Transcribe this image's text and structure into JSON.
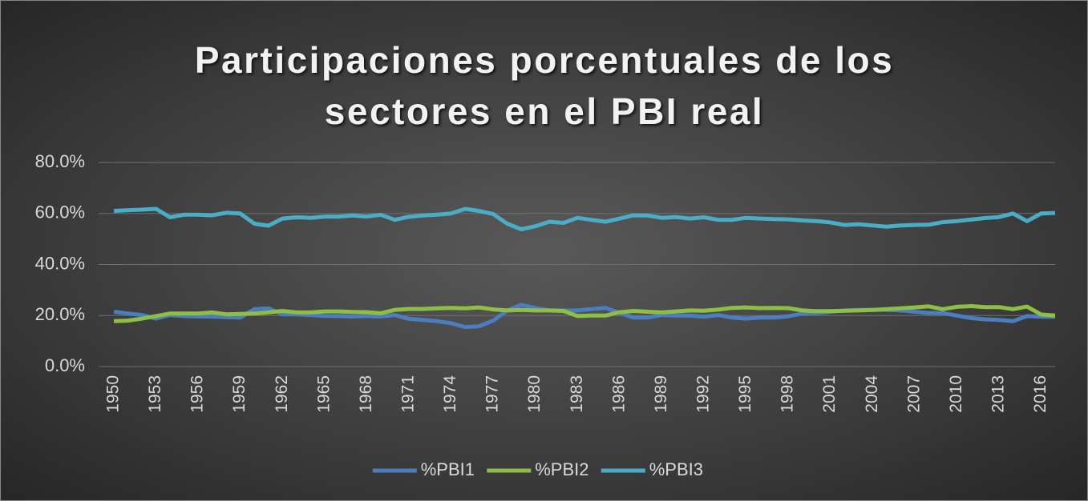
{
  "chart_data": {
    "type": "line",
    "title": "Participaciones porcentuales de los sectores en el PBI real",
    "x": [
      1950,
      1951,
      1952,
      1953,
      1954,
      1955,
      1956,
      1957,
      1958,
      1959,
      1960,
      1961,
      1962,
      1963,
      1964,
      1965,
      1966,
      1967,
      1968,
      1969,
      1970,
      1971,
      1972,
      1973,
      1974,
      1975,
      1976,
      1977,
      1978,
      1979,
      1980,
      1981,
      1982,
      1983,
      1984,
      1985,
      1986,
      1987,
      1988,
      1989,
      1990,
      1991,
      1992,
      1993,
      1994,
      1995,
      1996,
      1997,
      1998,
      1999,
      2000,
      2001,
      2002,
      2003,
      2004,
      2005,
      2006,
      2007,
      2008,
      2009,
      2010,
      2011,
      2012,
      2013,
      2014,
      2015,
      2016,
      2017
    ],
    "xlim": [
      1950,
      2017
    ],
    "xticks": [
      1950,
      1953,
      1956,
      1959,
      1962,
      1965,
      1968,
      1971,
      1974,
      1977,
      1980,
      1983,
      1986,
      1989,
      1992,
      1995,
      1998,
      2001,
      2004,
      2007,
      2010,
      2013,
      2016
    ],
    "ylim": [
      0,
      80
    ],
    "yticks": [
      {
        "value": 0,
        "label": "0.0%"
      },
      {
        "value": 20,
        "label": "20.0%"
      },
      {
        "value": 40,
        "label": "40.0%"
      },
      {
        "value": 60,
        "label": "60.0%"
      },
      {
        "value": 80,
        "label": "80.0%"
      }
    ],
    "grid": true,
    "legend": "bottom",
    "series": [
      {
        "name": "%PBI1",
        "color": "#4a7ebf",
        "values": [
          21.5,
          20.8,
          20.2,
          18.8,
          20.2,
          19.8,
          19.6,
          19.6,
          19.4,
          19.2,
          22.5,
          22.8,
          20.5,
          20.5,
          20.2,
          19.8,
          19.8,
          19.6,
          19.8,
          19.6,
          20.2,
          18.7,
          18.3,
          17.8,
          17,
          15.5,
          15.8,
          18,
          22,
          24.2,
          23,
          22,
          22,
          22,
          22.5,
          23,
          21,
          19.2,
          19.2,
          20.2,
          20,
          20,
          19.5,
          20.2,
          19.2,
          18.8,
          19.2,
          19.2,
          19.7,
          20.8,
          21,
          21.5,
          22,
          22.2,
          22.2,
          22.2,
          22,
          21.5,
          21,
          21,
          20,
          19,
          18.5,
          18.3,
          17.8,
          19.8,
          19.5,
          19.5
        ]
      },
      {
        "name": "%PBI2",
        "color": "#8fbe46",
        "values": [
          17.8,
          18,
          18.8,
          19.8,
          20.8,
          20.8,
          20.8,
          21.2,
          20.5,
          20.6,
          20.8,
          21.2,
          21.8,
          21.2,
          21.2,
          21.6,
          21.6,
          21.4,
          21.3,
          20.9,
          22.2,
          22.6,
          22.6,
          22.8,
          23,
          22.8,
          23.2,
          22.4,
          22,
          22.2,
          22,
          22,
          21.8,
          19.8,
          20,
          20,
          21.3,
          21.8,
          21.5,
          21.2,
          21.6,
          22,
          21.9,
          22.3,
          23,
          23.2,
          22.9,
          23,
          22.9,
          22,
          21.7,
          21.7,
          21.9,
          22,
          22.2,
          22.5,
          22.8,
          23.2,
          23.6,
          22.5,
          23.4,
          23.7,
          23.3,
          23.3,
          22.5,
          23.5,
          20.4,
          20
        ]
      },
      {
        "name": "%PBI3",
        "color": "#4bacc6",
        "values": [
          61,
          61.3,
          61.5,
          61.8,
          58.5,
          59.5,
          59.5,
          59.3,
          60.3,
          60,
          56,
          55.2,
          58,
          58.5,
          58.3,
          58.8,
          58.8,
          59.2,
          58.8,
          59.5,
          57.5,
          58.7,
          59.2,
          59.5,
          60,
          61.8,
          61,
          59.8,
          56,
          53.8,
          55,
          56.8,
          56.3,
          58.3,
          57.5,
          56.8,
          58,
          59.3,
          59.2,
          58.3,
          58.6,
          58,
          58.5,
          57.5,
          57.5,
          58.3,
          58,
          57.8,
          57.7,
          57.3,
          57,
          56.5,
          55.5,
          55.8,
          55.3,
          54.8,
          55.3,
          55.5,
          55.6,
          56.6,
          57,
          57.6,
          58.2,
          58.6,
          60,
          57,
          60,
          60.2
        ]
      }
    ]
  }
}
